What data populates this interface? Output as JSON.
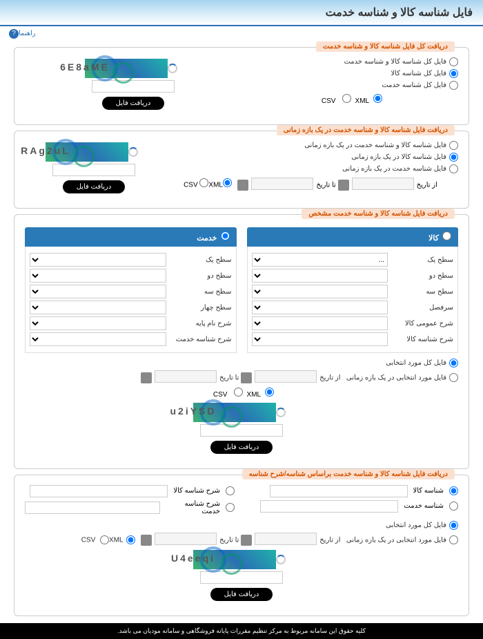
{
  "header": {
    "title": "فایل شناسه کالا و شناسه خدمت"
  },
  "help": {
    "label": "راهنما"
  },
  "panel1": {
    "title": "دریافت کل فایل شناسه کالا و شناسه خدمت",
    "opt1": "فایل کل شناسه کالا و شناسه خدمت",
    "opt2": "فایل کل شناسه کالا",
    "opt3": "فایل کل شناسه خدمت",
    "captcha": "6E8aME"
  },
  "panel2": {
    "title": "دریافت فایل شناسه کالا و شناسه خدمت در یک بازه زمانی",
    "opt1": "فایل شناسه کالا و شناسه خدمت در یک بازه زمانی",
    "opt2": "فایل شناسه کالا در یک بازه زمانی",
    "opt3": "فایل شناسه خدمت در یک بازه زمانی",
    "captcha": "RAg2uL"
  },
  "panel3": {
    "title": "دریافت فایل شناسه کالا و شناسه خدمت مشخص",
    "tab_kala": "کالا",
    "tab_khedmat": "خدمت",
    "lv1": "سطح یک",
    "lv2": "سطح دو",
    "lv3": "سطح سه",
    "lv4_k": "سرفصل",
    "lv5_k": "شرح عمومی کالا",
    "lv6_k": "شرح شناسه کالا",
    "lv4_s": "سطح چهار",
    "lv5_s": "شرح نام پایه",
    "lv6_s": "شرح شناسه خدمت",
    "sel_opt1": "فایل کل مورد انتخابی",
    "sel_opt2": "فایل مورد انتخابی در یک بازه زمانی",
    "captcha": "u2iYSD"
  },
  "panel4": {
    "title": "دریافت فایل شناسه کالا و شناسه خدمت براساس شناسه/شرح شناسه",
    "id_kala": "شناسه کالا",
    "id_khedmat": "شناسه خدمت",
    "desc_kala": "شرح شناسه کالا",
    "desc_khedmat": "شرح شناسه خدمت",
    "sel_opt1": "فایل کل مورد انتخابی",
    "sel_opt2": "فایل مورد انتخابی در یک بازه زمانی",
    "captcha": "U4eeqi"
  },
  "common": {
    "csv": "CSV",
    "xml": "XML",
    "from_date": "از تاریخ",
    "to_date": "تا تاریخ",
    "download": "دریافت فایل"
  },
  "footer": {
    "text": "کلیه حقوق این سامانه مربوط به مرکز تنظیم مقررات پایانه فروشگاهی و سامانه مودیان می باشد."
  }
}
